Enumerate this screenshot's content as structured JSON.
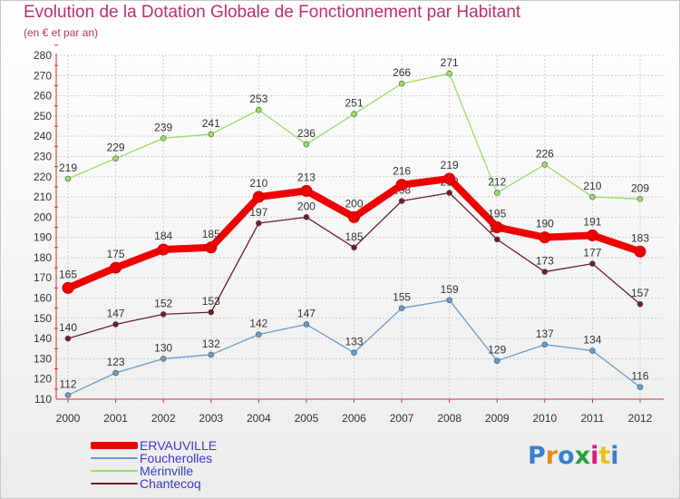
{
  "title": "Evolution de la Dotation Globale de Fonctionnement par Habitant",
  "subtitle": "(en € et par an)",
  "logo_text": "Proxiti",
  "colors": {
    "title": "#c0306a",
    "axis": "#cc3333",
    "legend_text": "#3a3acc",
    "grid": "#cccccc"
  },
  "chart_data": {
    "type": "line",
    "x": [
      "2000",
      "2001",
      "2002",
      "2003",
      "2004",
      "2005",
      "2006",
      "2007",
      "2008",
      "2009",
      "2010",
      "2011",
      "2012"
    ],
    "ylim": [
      110,
      280
    ],
    "yticks": [
      110,
      120,
      130,
      140,
      150,
      160,
      170,
      180,
      190,
      200,
      210,
      220,
      230,
      240,
      250,
      260,
      270,
      280
    ],
    "grid": true,
    "legend_position": "bottom-left",
    "series": [
      {
        "name": "Foucherolles",
        "color": "#6a9cc8",
        "values": [
          112,
          123,
          130,
          132,
          142,
          147,
          133,
          155,
          159,
          129,
          137,
          134,
          116
        ]
      },
      {
        "name": "Mérinville",
        "color": "#99dd66",
        "values": [
          219,
          229,
          239,
          241,
          253,
          236,
          251,
          266,
          271,
          212,
          226,
          210,
          209
        ]
      },
      {
        "name": "Chantecoq",
        "color": "#6b1e28",
        "values": [
          140,
          147,
          152,
          153,
          197,
          200,
          185,
          208,
          212,
          189,
          173,
          177,
          157
        ]
      },
      {
        "name": "ERVAUVILLE",
        "color": "#ee0000",
        "values": [
          165,
          175,
          184,
          185,
          210,
          213,
          200,
          216,
          219,
          195,
          190,
          191,
          183
        ]
      }
    ],
    "legend_order": [
      "ERVAUVILLE",
      "Foucherolles",
      "Mérinville",
      "Chantecoq"
    ]
  }
}
